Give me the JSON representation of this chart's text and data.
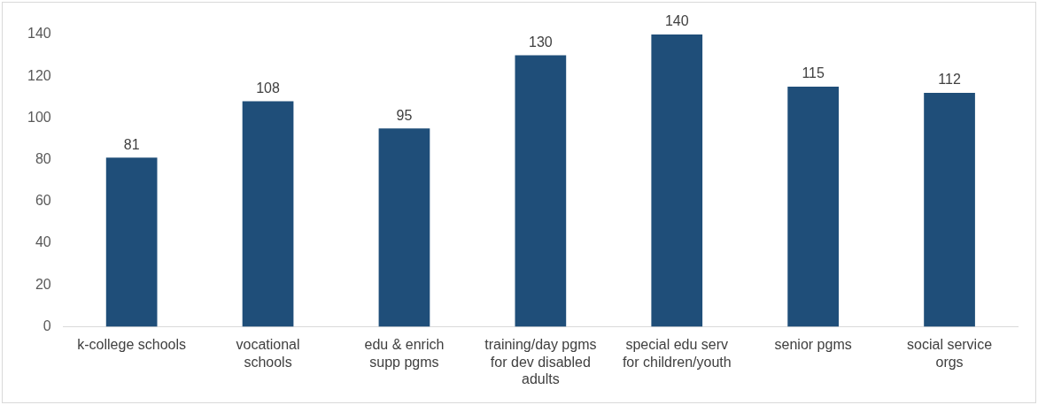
{
  "chart_data": {
    "type": "bar",
    "categories": [
      "k-college schools",
      "vocational schools",
      "edu & enrich supp pgms",
      "training/day pgms for dev disabled adults",
      "special edu serv for children/youth",
      "senior pgms",
      "social service orgs"
    ],
    "values": [
      81,
      108,
      95,
      130,
      140,
      115,
      112
    ],
    "color": "#1f4e79",
    "ylim": [
      0,
      140
    ],
    "yticks": [
      0,
      20,
      40,
      60,
      80,
      100,
      120,
      140
    ],
    "grid": false,
    "legend": false,
    "data_labels": true
  }
}
